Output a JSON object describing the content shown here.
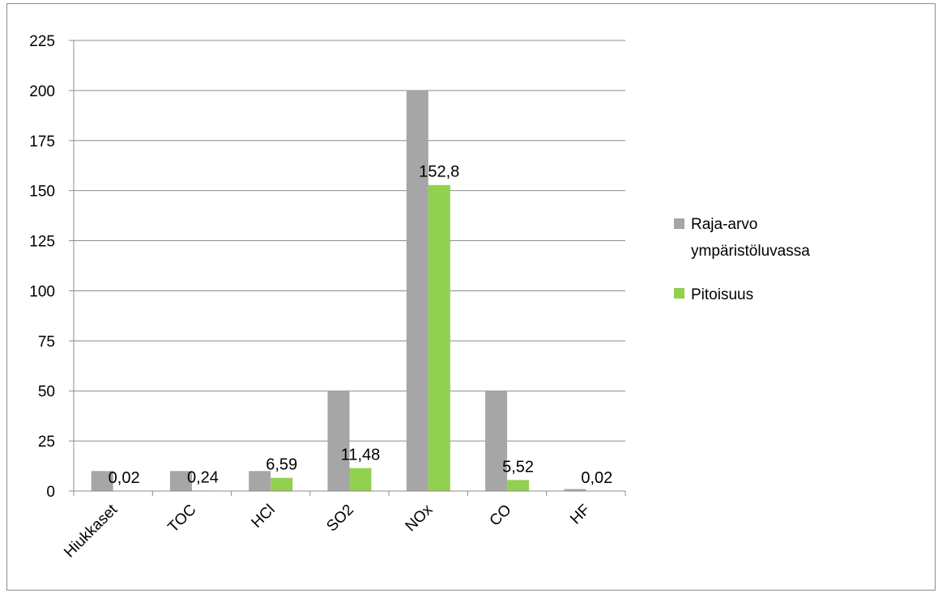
{
  "chart_data": {
    "type": "bar",
    "title": "",
    "xlabel": "",
    "ylabel": "",
    "categories": [
      "Hiukkaset",
      "TOC",
      "HCl",
      "SO2",
      "NOx",
      "CO",
      "HF"
    ],
    "series": [
      {
        "name": "Raja-arvo ympäristöluvassa",
        "color": "#a6a6a6",
        "values": [
          10,
          10,
          10,
          50,
          200,
          50,
          1
        ]
      },
      {
        "name": "Pitoisuus",
        "color": "#92d050",
        "values": [
          0.02,
          0.24,
          6.59,
          11.48,
          152.8,
          5.52,
          0.02
        ],
        "labels": [
          "0,02",
          "0,24",
          "6,59",
          "11,48",
          "152,8",
          "5,52",
          "0,02"
        ]
      }
    ],
    "ylim": [
      0,
      225
    ],
    "yticks": [
      0,
      25,
      50,
      75,
      100,
      125,
      150,
      175,
      200,
      225
    ],
    "grid": true,
    "legend_position": "right",
    "legend": {
      "line1": "Raja-arvo",
      "line2": "ympäristöluvassa",
      "item2": "Pitoisuus"
    }
  }
}
